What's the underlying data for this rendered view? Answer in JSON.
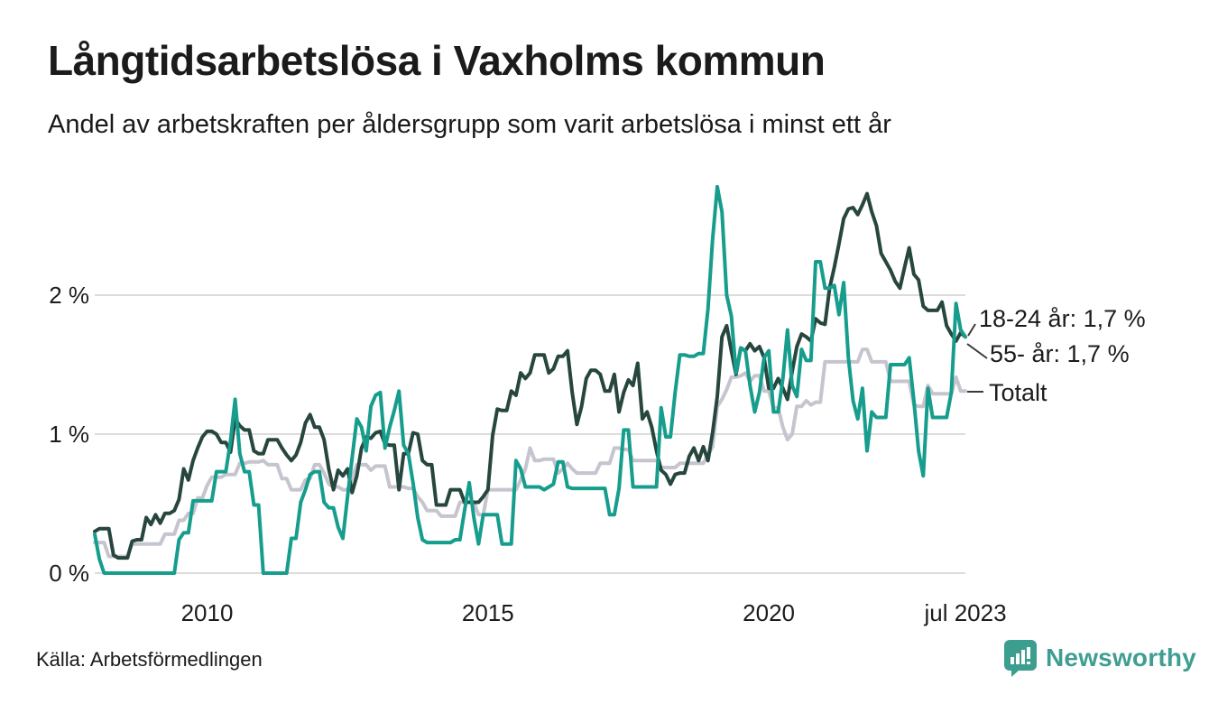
{
  "header": {
    "title": "Långtidsarbetslösa i Vaxholms kommun",
    "subtitle": "Andel av arbetskraften per åldersgrupp som varit arbetslösa i minst ett år"
  },
  "footer": {
    "source": "Källa: Arbetsförmedlingen",
    "logo_text": "Newsworthy"
  },
  "colors": {
    "series_18_24": "#27463e",
    "series_55": "#169d8d",
    "series_total": "#c6c4ce",
    "grid": "#dcdcdc",
    "text": "#1c1c1c",
    "logo": "#3b9e8f"
  },
  "chart_data": {
    "type": "line",
    "x_unit": "month",
    "x_range": [
      "2008-01",
      "2023-07"
    ],
    "ylim": [
      0,
      2.9
    ],
    "grid": true,
    "legend_position": "right-end-labels",
    "yticks": [
      {
        "label": "0 %",
        "value": 0
      },
      {
        "label": "1 %",
        "value": 1
      },
      {
        "label": "2 %",
        "value": 2
      }
    ],
    "xticks": [
      {
        "label": "2010",
        "month_index": 24
      },
      {
        "label": "2015",
        "month_index": 84
      },
      {
        "label": "2020",
        "month_index": 144
      },
      {
        "label": "jul 2023",
        "month_index": 186
      }
    ],
    "annotations": [
      {
        "text": "18-24 år: 1,7 %",
        "series": "18-24 år"
      },
      {
        "text": "55- år: 1,7 %",
        "series": "55- år"
      },
      {
        "text": "Totalt",
        "series": "Totalt"
      }
    ],
    "series": [
      {
        "name": "18-24 år",
        "color": "#27463e",
        "values": [
          0.3,
          0.32,
          0.32,
          0.32,
          0.13,
          0.11,
          0.11,
          0.11,
          0.23,
          0.24,
          0.24,
          0.4,
          0.35,
          0.42,
          0.36,
          0.43,
          0.43,
          0.45,
          0.53,
          0.75,
          0.67,
          0.81,
          0.9,
          0.98,
          1.02,
          1.02,
          1.0,
          0.94,
          0.94,
          0.87,
          1.11,
          1.06,
          1.03,
          1.03,
          0.88,
          0.86,
          0.86,
          0.96,
          0.96,
          0.96,
          0.9,
          0.85,
          0.81,
          0.85,
          0.94,
          1.08,
          1.14,
          1.05,
          1.05,
          0.96,
          0.75,
          0.6,
          0.74,
          0.7,
          0.75,
          0.58,
          0.7,
          0.9,
          0.98,
          0.97,
          1.01,
          1.02,
          0.93,
          0.92,
          0.92,
          0.6,
          0.86,
          0.86,
          1.01,
          1.0,
          0.81,
          0.78,
          0.78,
          0.49,
          0.49,
          0.49,
          0.6,
          0.6,
          0.6,
          0.51,
          0.51,
          0.51,
          0.51,
          0.55,
          0.6,
          0.99,
          1.18,
          1.17,
          1.17,
          1.31,
          1.28,
          1.44,
          1.4,
          1.44,
          1.57,
          1.57,
          1.57,
          1.44,
          1.47,
          1.56,
          1.56,
          1.6,
          1.3,
          1.07,
          1.2,
          1.4,
          1.46,
          1.46,
          1.43,
          1.31,
          1.31,
          1.43,
          1.16,
          1.3,
          1.39,
          1.35,
          1.51,
          1.11,
          1.16,
          1.05,
          0.88,
          0.74,
          0.71,
          0.64,
          0.71,
          0.72,
          0.72,
          0.84,
          0.9,
          0.81,
          0.91,
          0.81,
          1.01,
          1.27,
          1.7,
          1.78,
          1.6,
          1.43,
          1.62,
          1.6,
          1.65,
          1.6,
          1.63,
          1.55,
          1.33,
          1.33,
          1.4,
          1.33,
          1.25,
          1.45,
          1.63,
          1.72,
          1.7,
          1.67,
          1.83,
          1.8,
          1.79,
          2.05,
          2.2,
          2.37,
          2.55,
          2.62,
          2.63,
          2.58,
          2.65,
          2.73,
          2.6,
          2.5,
          2.3,
          2.24,
          2.18,
          2.1,
          2.05,
          2.2,
          2.34,
          2.15,
          2.11,
          1.92,
          1.89,
          1.89,
          1.89,
          1.95,
          1.78,
          1.72,
          1.67,
          1.73,
          1.7
        ]
      },
      {
        "name": "55- år",
        "color": "#169d8d",
        "values": [
          0.28,
          0.1,
          0.0,
          0.0,
          0.0,
          0.0,
          0.0,
          0.0,
          0.0,
          0.0,
          0.0,
          0.0,
          0.0,
          0.0,
          0.0,
          0.0,
          0.0,
          0.0,
          0.24,
          0.29,
          0.29,
          0.52,
          0.52,
          0.52,
          0.52,
          0.52,
          0.73,
          0.73,
          0.73,
          0.95,
          1.25,
          0.86,
          0.73,
          0.73,
          0.49,
          0.49,
          0.0,
          0.0,
          0.0,
          0.0,
          0.0,
          0.0,
          0.25,
          0.25,
          0.51,
          0.6,
          0.71,
          0.73,
          0.73,
          0.51,
          0.47,
          0.47,
          0.33,
          0.25,
          0.55,
          0.83,
          1.11,
          1.05,
          0.88,
          1.2,
          1.28,
          1.3,
          0.9,
          1.05,
          1.17,
          1.31,
          0.92,
          0.86,
          0.65,
          0.4,
          0.24,
          0.22,
          0.22,
          0.22,
          0.22,
          0.22,
          0.22,
          0.24,
          0.24,
          0.45,
          0.65,
          0.4,
          0.21,
          0.42,
          0.42,
          0.42,
          0.42,
          0.21,
          0.21,
          0.21,
          0.81,
          0.75,
          0.62,
          0.62,
          0.62,
          0.62,
          0.6,
          0.62,
          0.64,
          0.8,
          0.8,
          0.62,
          0.61,
          0.61,
          0.61,
          0.61,
          0.61,
          0.61,
          0.61,
          0.61,
          0.42,
          0.42,
          0.61,
          1.03,
          1.03,
          0.62,
          0.62,
          0.62,
          0.62,
          0.62,
          0.62,
          1.19,
          0.98,
          0.98,
          1.3,
          1.57,
          1.57,
          1.56,
          1.56,
          1.58,
          1.58,
          1.9,
          2.4,
          2.78,
          2.6,
          2.0,
          1.85,
          1.44,
          1.62,
          1.6,
          1.35,
          1.16,
          1.3,
          1.55,
          1.6,
          1.16,
          1.16,
          1.4,
          1.75,
          1.35,
          1.27,
          1.61,
          1.53,
          1.53,
          2.24,
          2.24,
          2.05,
          2.05,
          2.07,
          1.86,
          2.09,
          1.55,
          1.24,
          1.11,
          1.33,
          0.88,
          1.16,
          1.12,
          1.12,
          1.12,
          1.5,
          1.5,
          1.5,
          1.5,
          1.55,
          1.24,
          0.88,
          0.7,
          1.33,
          1.12,
          1.12,
          1.12,
          1.12,
          1.3,
          1.94,
          1.75,
          1.7
        ]
      },
      {
        "name": "Totalt",
        "color": "#c6c4ce",
        "values": [
          0.22,
          0.22,
          0.22,
          0.12,
          0.12,
          0.12,
          0.12,
          0.12,
          0.21,
          0.21,
          0.21,
          0.21,
          0.21,
          0.21,
          0.21,
          0.28,
          0.28,
          0.28,
          0.38,
          0.38,
          0.43,
          0.43,
          0.54,
          0.54,
          0.63,
          0.69,
          0.69,
          0.69,
          0.71,
          0.71,
          0.71,
          0.79,
          0.79,
          0.8,
          0.8,
          0.8,
          0.81,
          0.78,
          0.78,
          0.78,
          0.68,
          0.68,
          0.6,
          0.6,
          0.6,
          0.67,
          0.68,
          0.78,
          0.78,
          0.72,
          0.64,
          0.62,
          0.62,
          0.6,
          0.6,
          0.68,
          0.78,
          0.78,
          0.78,
          0.74,
          0.77,
          0.77,
          0.77,
          0.62,
          0.62,
          0.62,
          0.62,
          0.61,
          0.61,
          0.55,
          0.51,
          0.45,
          0.45,
          0.45,
          0.41,
          0.41,
          0.41,
          0.41,
          0.51,
          0.51,
          0.51,
          0.51,
          0.42,
          0.42,
          0.6,
          0.6,
          0.6,
          0.6,
          0.6,
          0.6,
          0.6,
          0.67,
          0.75,
          0.9,
          0.81,
          0.81,
          0.82,
          0.82,
          0.82,
          0.72,
          0.75,
          0.79,
          0.75,
          0.72,
          0.72,
          0.72,
          0.72,
          0.72,
          0.79,
          0.79,
          0.79,
          0.9,
          0.9,
          0.89,
          0.89,
          0.81,
          0.81,
          0.81,
          0.81,
          0.81,
          0.81,
          0.76,
          0.76,
          0.76,
          0.76,
          0.79,
          0.79,
          0.79,
          0.79,
          0.79,
          0.79,
          0.85,
          0.91,
          1.2,
          1.25,
          1.32,
          1.41,
          1.41,
          1.42,
          1.44,
          1.38,
          1.42,
          1.42,
          1.31,
          1.31,
          1.19,
          1.19,
          1.05,
          0.96,
          1.0,
          1.2,
          1.2,
          1.24,
          1.21,
          1.23,
          1.23,
          1.52,
          1.52,
          1.52,
          1.52,
          1.52,
          1.52,
          1.52,
          1.52,
          1.61,
          1.61,
          1.52,
          1.52,
          1.52,
          1.52,
          1.38,
          1.38,
          1.38,
          1.38,
          1.38,
          1.21,
          1.2,
          1.2,
          1.35,
          1.29,
          1.29,
          1.29,
          1.29,
          1.29,
          1.41,
          1.31,
          1.31
        ]
      }
    ]
  }
}
